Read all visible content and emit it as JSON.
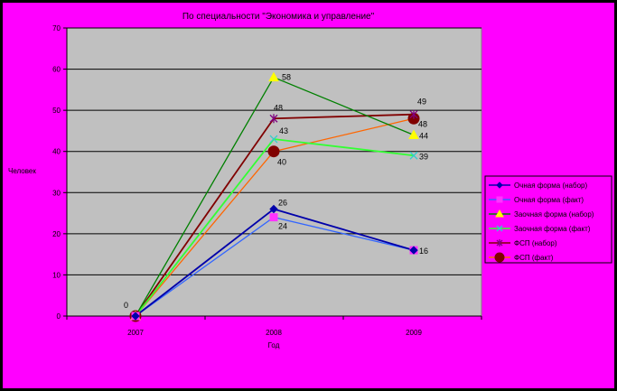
{
  "chart_data": {
    "type": "line",
    "title": "По специальности \"Экономика и управление\"",
    "xlabel": "Год",
    "ylabel": "Человек",
    "categories": [
      "2007",
      "2008",
      "2009"
    ],
    "ylim": [
      0,
      70
    ],
    "yticks": [
      "0",
      "10",
      "20",
      "30",
      "40",
      "50",
      "60",
      "70"
    ],
    "grid": true,
    "legend_position": "right",
    "series": [
      {
        "name": "Очная форма (набор)",
        "values": [
          0,
          26,
          16
        ],
        "color": "#0000aa",
        "marker": "diamond",
        "labels": [
          "",
          "26",
          ""
        ]
      },
      {
        "name": "Очная форма (факт)",
        "values": [
          0,
          24,
          16
        ],
        "color": "#3366ff",
        "marker": "square",
        "markerColor": "#ff33ff",
        "labels": [
          "",
          "24",
          "16"
        ]
      },
      {
        "name": "Заочная форма (набор)",
        "values": [
          0,
          58,
          44
        ],
        "color": "#008000",
        "marker": "triangle",
        "markerColor": "#ffff00",
        "labels": [
          "",
          "58",
          "44"
        ]
      },
      {
        "name": "Заочная форма (факт)",
        "values": [
          0,
          43,
          39
        ],
        "color": "#33ff33",
        "marker": "x",
        "markerColor": "#33cccc",
        "labels": [
          "",
          "43",
          "39"
        ]
      },
      {
        "name": "ФСП (набор)",
        "values": [
          0,
          48,
          49
        ],
        "color": "#800000",
        "marker": "star",
        "markerColor": "#800080",
        "labels": [
          "",
          "48",
          "49"
        ]
      },
      {
        "name": "ФСП (факт)",
        "values": [
          0,
          40,
          48
        ],
        "color": "#ff6600",
        "marker": "circle",
        "markerColor": "#800000",
        "labels": [
          "0",
          "40",
          "48"
        ]
      }
    ]
  }
}
